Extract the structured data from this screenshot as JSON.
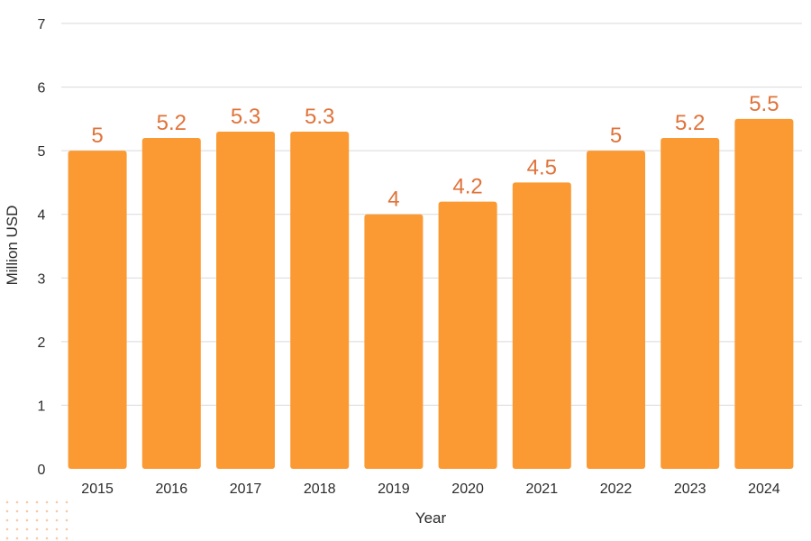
{
  "chart_data": {
    "type": "bar",
    "categories": [
      "2015",
      "2016",
      "2017",
      "2018",
      "2019",
      "2020",
      "2021",
      "2022",
      "2023",
      "2024"
    ],
    "values": [
      5,
      5.2,
      5.3,
      5.3,
      4,
      4.2,
      4.5,
      5,
      5.2,
      5.5
    ],
    "data_labels": [
      "5",
      "5.2",
      "5.3",
      "5.3",
      "4",
      "4.2",
      "4.5",
      "5",
      "5.2",
      "5.5"
    ],
    "xlabel": "Year",
    "ylabel": "Million USD",
    "ylim": [
      0,
      7
    ],
    "yticks": [
      "0",
      "1",
      "2",
      "3",
      "4",
      "5",
      "6",
      "7"
    ],
    "grid": true,
    "bar_color": "#fb9a33",
    "label_color": "#e0733a",
    "grid_color": "#d9d9d9",
    "decoration_color": "#f6c9a8"
  }
}
